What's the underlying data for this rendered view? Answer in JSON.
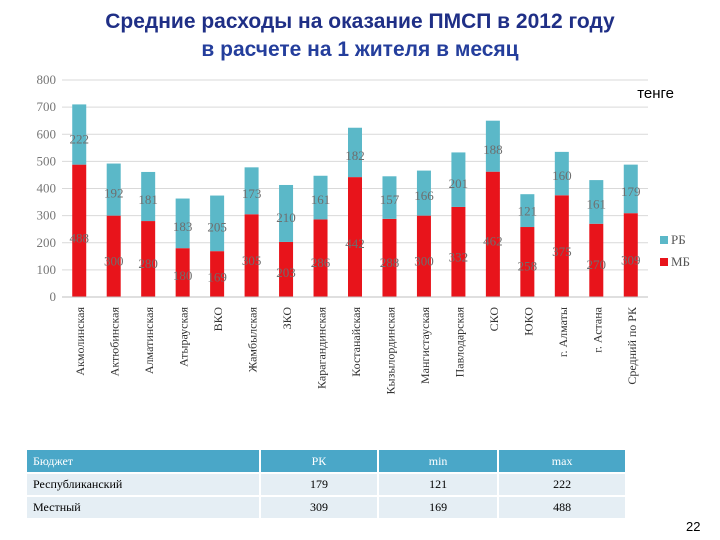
{
  "title": {
    "line1": "Средние расходы на оказание ПМСП в 2012 году",
    "line2": "в расчете на 1 жителя в месяц"
  },
  "chart_data": {
    "type": "bar",
    "stacked": true,
    "unit_label": "тенге",
    "categories": [
      "Акмолинская",
      "Актюбинская",
      "Алматинская",
      "Атырауская",
      "ВКО",
      "Жамбылская",
      "ЗКО",
      "Карагандинская",
      "Костанайская",
      "Кызылординская",
      "Мангистауская",
      "Павлодарская",
      "СКО",
      "ЮКО",
      "г. Алматы",
      "г. Астана",
      "Средний по РК"
    ],
    "series": [
      {
        "name": "МБ",
        "color": "#e8141b",
        "values": [
          488,
          300,
          280,
          180,
          169,
          305,
          203,
          286,
          442,
          288,
          300,
          332,
          462,
          258,
          375,
          270,
          309
        ]
      },
      {
        "name": "РБ",
        "color": "#5bb8c8",
        "values": [
          222,
          192,
          181,
          183,
          205,
          173,
          210,
          161,
          182,
          157,
          166,
          201,
          188,
          121,
          160,
          161,
          179
        ]
      }
    ],
    "ylim": [
      0,
      800
    ],
    "yticks": [
      0,
      100,
      200,
      300,
      400,
      500,
      600,
      700,
      800
    ],
    "grid": true,
    "legend": "right"
  },
  "table": {
    "headers": [
      "Бюджет",
      "РК",
      "min",
      "max"
    ],
    "rows": [
      [
        "Республиканский",
        "179",
        "121",
        "222"
      ],
      [
        "Местный",
        "309",
        "169",
        "488"
      ]
    ]
  },
  "page_number": "22"
}
